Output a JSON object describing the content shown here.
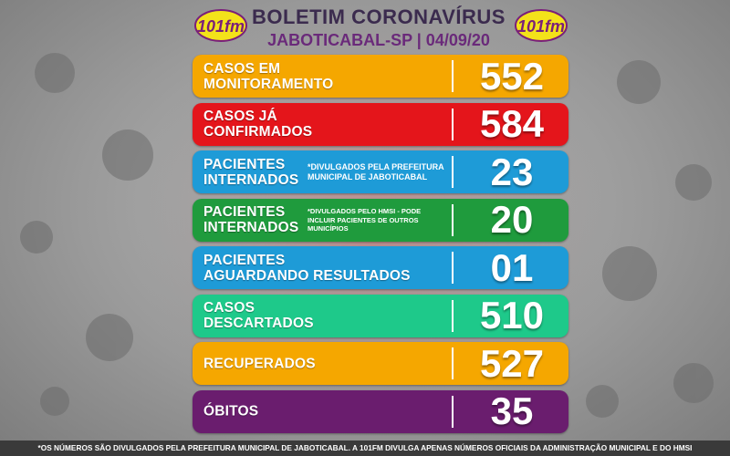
{
  "header": {
    "title": "BOLETIM CORONAVÍRUS",
    "subtitle": "JABOTICABAL-SP | 04/09/20",
    "logo_text": "101fm"
  },
  "rows": [
    {
      "label_line1": "CASOS EM",
      "label_line2": "MONITORAMENTO",
      "note": "",
      "value": "552",
      "color": "#f5a700"
    },
    {
      "label_line1": "CASOS JÁ",
      "label_line2": "CONFIRMADOS",
      "note": "",
      "value": "584",
      "color": "#e4151b"
    },
    {
      "label_line1": "PACIENTES",
      "label_line2": "INTERNADOS",
      "note": "*DIVULGADOS PELA PREFEITURA MUNICIPAL DE JABOTICABAL",
      "value": "23",
      "color": "#1e9bd7"
    },
    {
      "label_line1": "PACIENTES",
      "label_line2": "INTERNADOS",
      "note": "*DIVULGADOS PELO HMSI - PODE INCLUIR PACIENTES DE OUTROS MUNICÍPIOS",
      "value": "20",
      "color": "#1f9b3d"
    },
    {
      "label_line1": "PACIENTES",
      "label_line2": "AGUARDANDO RESULTADOS",
      "note": "",
      "value": "01",
      "color": "#1e9bd7"
    },
    {
      "label_line1": "CASOS",
      "label_line2": "DESCARTADOS",
      "note": "",
      "value": "510",
      "color": "#1ec98a"
    },
    {
      "label_line1": "RECUPERADOS",
      "label_line2": "",
      "note": "",
      "value": "527",
      "color": "#f5a700"
    },
    {
      "label_line1": "ÓBITOS",
      "label_line2": "",
      "note": "",
      "value": "35",
      "color": "#6a1d6e"
    }
  ],
  "footer": {
    "text": "*OS NÚMEROS SÃO DIVULGADOS PELA PREFEITURA MUNICIPAL DE JABOTICABAL. A 101FM DIVULGA APENAS NÚMEROS OFICIAIS DA ADMINISTRAÇÃO MUNICIPAL E DO HMSI"
  }
}
